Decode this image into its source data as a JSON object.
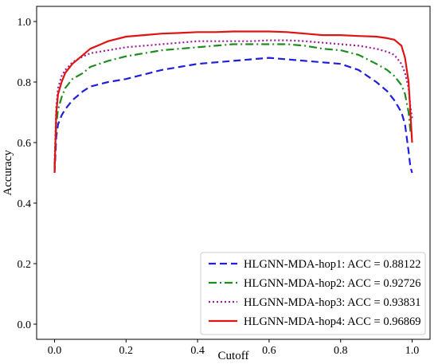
{
  "chart_data": {
    "type": "line",
    "title": "",
    "xlabel": "Cutoff",
    "ylabel": "Accuracy",
    "xlim": [
      -0.05,
      1.05
    ],
    "ylim": [
      -0.05,
      1.05
    ],
    "xticks": [
      "0.0",
      "0.2",
      "0.4",
      "0.6",
      "0.8",
      "1.0"
    ],
    "xtick_values": [
      0,
      0.2,
      0.4,
      0.6,
      0.8,
      1.0
    ],
    "yticks": [
      "0.0",
      "0.2",
      "0.4",
      "0.6",
      "0.8",
      "1.0"
    ],
    "ytick_values": [
      0,
      0.2,
      0.4,
      0.6,
      0.8,
      1.0
    ],
    "grid": false,
    "legend_position": "lower-right",
    "x": [
      0.0,
      0.005,
      0.01,
      0.02,
      0.03,
      0.05,
      0.08,
      0.1,
      0.15,
      0.2,
      0.25,
      0.3,
      0.35,
      0.4,
      0.45,
      0.5,
      0.55,
      0.6,
      0.65,
      0.7,
      0.75,
      0.8,
      0.85,
      0.9,
      0.93,
      0.95,
      0.97,
      0.98,
      0.99,
      0.995,
      1.0
    ],
    "series": [
      {
        "name": "HLGNN-MDA-hop1: ACC = 0.88122",
        "color": "#1f1fdc",
        "dash": "9,5",
        "values": [
          0.5,
          0.62,
          0.66,
          0.69,
          0.71,
          0.74,
          0.77,
          0.785,
          0.8,
          0.81,
          0.825,
          0.84,
          0.85,
          0.86,
          0.865,
          0.87,
          0.875,
          0.88,
          0.875,
          0.87,
          0.865,
          0.86,
          0.84,
          0.8,
          0.77,
          0.74,
          0.7,
          0.66,
          0.57,
          0.52,
          0.5
        ]
      },
      {
        "name": "HLGNN-MDA-hop2: ACC = 0.92726",
        "color": "#1e8c1e",
        "dash": "10,4,2,4",
        "values": [
          0.52,
          0.66,
          0.71,
          0.75,
          0.78,
          0.81,
          0.83,
          0.85,
          0.87,
          0.885,
          0.895,
          0.905,
          0.91,
          0.915,
          0.92,
          0.925,
          0.925,
          0.925,
          0.925,
          0.92,
          0.91,
          0.905,
          0.89,
          0.86,
          0.84,
          0.82,
          0.79,
          0.76,
          0.7,
          0.64,
          0.62
        ]
      },
      {
        "name": "HLGNN-MDA-hop3: ACC = 0.93831",
        "color": "#9b1f9b",
        "dash": "2,3",
        "values": [
          0.53,
          0.72,
          0.78,
          0.82,
          0.84,
          0.865,
          0.885,
          0.895,
          0.905,
          0.915,
          0.92,
          0.925,
          0.93,
          0.935,
          0.935,
          0.935,
          0.935,
          0.938,
          0.938,
          0.935,
          0.93,
          0.925,
          0.92,
          0.91,
          0.9,
          0.89,
          0.86,
          0.83,
          0.78,
          0.72,
          0.68
        ]
      },
      {
        "name": "HLGNN-MDA-hop4: ACC = 0.96869",
        "color": "#e01414",
        "dash": "",
        "values": [
          0.5,
          0.7,
          0.76,
          0.8,
          0.83,
          0.86,
          0.89,
          0.91,
          0.935,
          0.95,
          0.955,
          0.96,
          0.962,
          0.965,
          0.965,
          0.967,
          0.967,
          0.967,
          0.965,
          0.96,
          0.955,
          0.955,
          0.952,
          0.95,
          0.945,
          0.94,
          0.92,
          0.88,
          0.8,
          0.7,
          0.6
        ]
      }
    ]
  }
}
